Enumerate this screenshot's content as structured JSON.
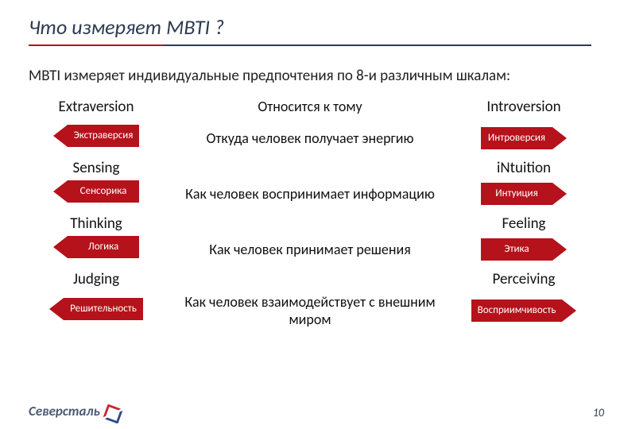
{
  "title": "Что измеряет MBTI ?",
  "subtitle": "MBTI измеряет индивидуальные предпочтения по 8-и различным шкалам:",
  "center_heading": "Относится к тому",
  "colors": {
    "arrow_fill": "#b5121b",
    "arrow_border": "#b5121b",
    "text_white": "#ffffff",
    "title_color": "#2e3a52",
    "accent_line": "#b5121b",
    "main_line": "#2e3a52"
  },
  "scales": [
    {
      "left_name": "Extraversion",
      "left_label": "Экстраверсия",
      "center": "Откуда человек получает энергию",
      "right_name": "Introversion",
      "right_label": "Интроверсия"
    },
    {
      "left_name": "Sensing",
      "left_label": "Сенсорика",
      "center": "Как человек воспринимает информацию",
      "right_name": "iNtuition",
      "right_label": "Интуиция"
    },
    {
      "left_name": "Thinking",
      "left_label": "Логика",
      "center": "Как человек принимает решения",
      "right_name": "Feeling",
      "right_label": "Этика"
    },
    {
      "left_name": "Judging",
      "left_label": "Решительность",
      "center": "Как человек взаимодействует с внешним миром",
      "right_name": "Perceiving",
      "right_label": "Восприимчивость"
    }
  ],
  "logo_text": "Северсталь",
  "page_number": "10"
}
